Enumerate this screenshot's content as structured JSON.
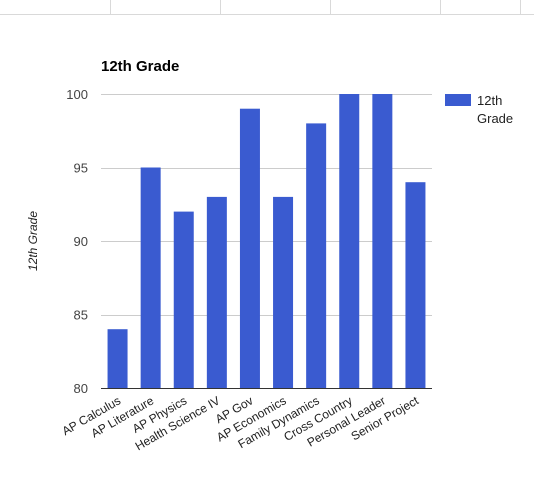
{
  "chart_data": {
    "type": "bar",
    "title": "12th Grade",
    "xlabel": "",
    "ylabel": "12th Grade",
    "categories": [
      "AP Calculus",
      "AP Literature",
      "AP Physics",
      "Health Science IV",
      "AP Gov",
      "AP Economics",
      "Family Dynamics",
      "Cross Country",
      "Personal Leader",
      "Senior Project"
    ],
    "series": [
      {
        "name": "12th Grade",
        "values": [
          84,
          95,
          92,
          93,
          99,
          93,
          98,
          100,
          100,
          94
        ]
      }
    ],
    "ylim": [
      80,
      100
    ],
    "yticks": [
      80,
      85,
      90,
      95,
      100
    ],
    "grid": true,
    "legend_position": "right",
    "colors": {
      "bar": "#3a5bd0",
      "grid": "#cccccc"
    },
    "legend_lines": [
      "12th",
      "Grade"
    ]
  }
}
